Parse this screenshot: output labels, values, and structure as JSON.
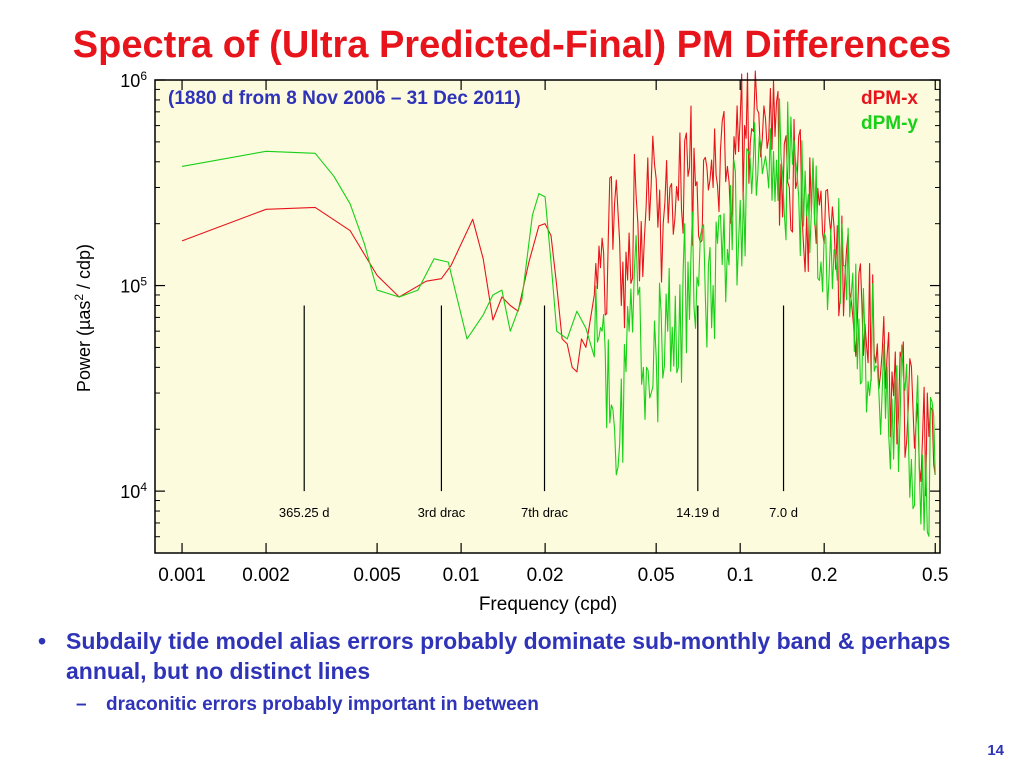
{
  "slide": {
    "title": "Spectra of (Ultra Predicted-Final) PM Differences",
    "bullet": "Subdaily tide model alias errors probably dominate sub-monthly band & perhaps annual, but no distinct lines",
    "sub_bullet": "draconitic errors probably important in between",
    "bullet_marker": "•",
    "sub_bullet_marker": "–",
    "page_number": "14"
  },
  "chart_data": {
    "type": "line",
    "title": "",
    "subtitle": "(1880 d from 8 Nov 2006 – 31 Dec 2011)",
    "xlabel": "Frequency (cpd)",
    "ylabel_parts": [
      "Power (µas",
      "2",
      " / cdp)"
    ],
    "x_scale": "log",
    "y_scale": "log",
    "xlim": [
      0.0008,
      0.52
    ],
    "ylim": [
      5000,
      1000000
    ],
    "x_ticks": [
      0.001,
      0.002,
      0.005,
      0.01,
      0.02,
      0.05,
      0.1,
      0.2,
      0.5
    ],
    "x_tick_labels": [
      "0.001",
      "0.002",
      "0.005",
      "0.01",
      "0.02",
      "0.05",
      "0.1",
      "0.2",
      "0.5"
    ],
    "y_ticks": [
      {
        "value": 10000,
        "base": "10",
        "exp": "4"
      },
      {
        "value": 100000,
        "base": "10",
        "exp": "5"
      },
      {
        "value": 1000000,
        "base": "10",
        "exp": "6"
      }
    ],
    "background": "#fdfbde",
    "reference_lines": [
      {
        "label": "365.25 d",
        "x": 0.00274
      },
      {
        "label": "3rd drac",
        "x": 0.0085
      },
      {
        "label": "7th drac",
        "x": 0.0199
      },
      {
        "label": "14.19 d",
        "x": 0.0705
      },
      {
        "label": "7.0 d",
        "x": 0.143
      }
    ],
    "reference_line_range": [
      10000,
      80000
    ],
    "series": [
      {
        "name": "dPM-x",
        "color": "#e8141b",
        "x": [
          0.001,
          0.002,
          0.003,
          0.004,
          0.005,
          0.006,
          0.0075,
          0.0085,
          0.0092,
          0.011,
          0.012,
          0.013,
          0.014,
          0.015,
          0.016,
          0.0175,
          0.019,
          0.02,
          0.021,
          0.022,
          0.023,
          0.024,
          0.025,
          0.026,
          0.027,
          0.028,
          0.03,
          0.032,
          0.035,
          0.038,
          0.04,
          0.043,
          0.046,
          0.05,
          0.053,
          0.056,
          0.06,
          0.065,
          0.07,
          0.075,
          0.08,
          0.085,
          0.09,
          0.095,
          0.1,
          0.105,
          0.11,
          0.115,
          0.12,
          0.13,
          0.14,
          0.15,
          0.16,
          0.18,
          0.2,
          0.22,
          0.25,
          0.28,
          0.31,
          0.35,
          0.4,
          0.45,
          0.5
        ],
        "y": [
          165000,
          235000,
          240000,
          185000,
          112000,
          88000,
          105000,
          108000,
          125000,
          210000,
          135000,
          68000,
          88000,
          80000,
          75000,
          130000,
          195000,
          200000,
          175000,
          100000,
          55000,
          52000,
          40000,
          38000,
          55000,
          50000,
          90000,
          170000,
          150000,
          130000,
          180000,
          200000,
          240000,
          330000,
          200000,
          300000,
          260000,
          340000,
          320000,
          420000,
          300000,
          460000,
          380000,
          530000,
          650000,
          520000,
          580000,
          720000,
          520000,
          460000,
          390000,
          300000,
          320000,
          230000,
          160000,
          120000,
          85000,
          65000,
          52000,
          38000,
          25000,
          18000,
          12000
        ]
      },
      {
        "name": "dPM-y",
        "color": "#18d018",
        "x": [
          0.001,
          0.002,
          0.003,
          0.0035,
          0.004,
          0.0045,
          0.005,
          0.006,
          0.007,
          0.008,
          0.009,
          0.0105,
          0.012,
          0.013,
          0.014,
          0.015,
          0.0165,
          0.018,
          0.019,
          0.02,
          0.021,
          0.022,
          0.024,
          0.026,
          0.028,
          0.03,
          0.032,
          0.035,
          0.037,
          0.04,
          0.043,
          0.045,
          0.048,
          0.05,
          0.055,
          0.06,
          0.065,
          0.07,
          0.075,
          0.08,
          0.085,
          0.09,
          0.1,
          0.11,
          0.12,
          0.13,
          0.14,
          0.15,
          0.16,
          0.18,
          0.2,
          0.22,
          0.25,
          0.28,
          0.31,
          0.35,
          0.4,
          0.45,
          0.5
        ],
        "y": [
          380000,
          450000,
          440000,
          340000,
          250000,
          160000,
          95000,
          88000,
          95000,
          135000,
          130000,
          55000,
          72000,
          90000,
          95000,
          60000,
          85000,
          220000,
          280000,
          270000,
          130000,
          60000,
          55000,
          75000,
          62000,
          45000,
          60000,
          25000,
          17000,
          60000,
          90000,
          40000,
          30000,
          45000,
          60000,
          40000,
          130000,
          110000,
          90000,
          100000,
          220000,
          150000,
          260000,
          280000,
          350000,
          260000,
          420000,
          330000,
          350000,
          230000,
          180000,
          140000,
          90000,
          55000,
          40000,
          28000,
          20000,
          15000,
          12000
        ]
      }
    ]
  }
}
